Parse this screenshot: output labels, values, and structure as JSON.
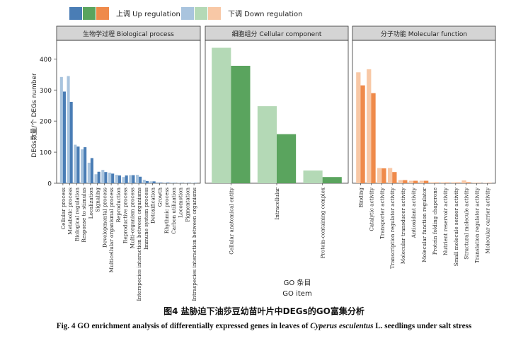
{
  "legend": {
    "up_label": "上调  Up regulation",
    "down_label": "下调  Down regulation"
  },
  "axes": {
    "ylabel": "DEGs数量/个  DEGs number",
    "xlabel_cn": "GO  条目",
    "xlabel_en": "GO item"
  },
  "caption": {
    "cn": "图4    盐胁迫下油莎豆幼苗叶片中DEGs的GO富集分析",
    "en_prefix": "Fig. 4    GO enrichment analysis of differentially expressed genes in leaves of ",
    "en_italic": "Cyperus esculentus",
    "en_suffix": " L. seedlings under salt stress"
  },
  "colors": {
    "bp_up": "#4a7db5",
    "bp_down": "#a9c4de",
    "cc_up": "#5aa45e",
    "cc_down": "#b4d9b6",
    "mf_up": "#ef8a4a",
    "mf_down": "#f8c8a6",
    "strip": "#d4d4d4"
  },
  "chart_data": {
    "type": "bar",
    "ylim": [
      0,
      460
    ],
    "yticks": [
      0,
      100,
      200,
      300,
      400
    ],
    "series": [
      {
        "name": "上调  Up regulation"
      },
      {
        "name": "下调  Down regulation"
      }
    ],
    "facets": [
      {
        "title": "生物学过程  Biological process",
        "categories": [
          "Cellular process",
          "Metabolic process",
          "Biological regulation",
          "Response to stimulus",
          "Localization",
          "Signaling",
          "Developmental process",
          "Multicellular organismal process",
          "Reproduction",
          "Reproductive process",
          "Multi-organism process",
          "Interspecies interaction between organisms",
          "Immune system process",
          "Detoxification",
          "Growth",
          "Rhythmic process",
          "Carbon utilization",
          "Locomotion",
          "Pigmentation",
          "Intraspecies interaction between organisms"
        ],
        "up": [
          295,
          262,
          118,
          116,
          81,
          37,
          36,
          31,
          25,
          25,
          26,
          21,
          7,
          6,
          2,
          2,
          1,
          1,
          1,
          1
        ],
        "down": [
          342,
          345,
          124,
          109,
          66,
          29,
          43,
          34,
          27,
          20,
          26,
          27,
          11,
          6,
          3,
          2,
          2,
          1,
          1,
          1
        ]
      },
      {
        "title": "细胞组分  Cellular component",
        "categories": [
          "Cellular anatomical entity",
          "Intracellular",
          "Protein-containing complex"
        ],
        "up": [
          378,
          158,
          20
        ],
        "down": [
          436,
          248,
          41
        ]
      },
      {
        "title": "分子功能  Molecular function",
        "categories": [
          "Binding",
          "Catalytic activity",
          "Transporter activity",
          "Transcription regulator activity",
          "Molecular transducer activity",
          "Antioxidant activity",
          "Molecular function regulator",
          "Protein folding chaperone",
          "Nutrient reservoir activity",
          "Small molecule sensor activity",
          "Structural molecule activity",
          "Translation regulator activity",
          "Molecular carrier activity"
        ],
        "up": [
          315,
          290,
          48,
          36,
          10,
          8,
          8,
          2,
          2,
          2,
          3,
          1,
          1
        ],
        "down": [
          357,
          367,
          49,
          49,
          10,
          8,
          8,
          3,
          3,
          3,
          9,
          2,
          1
        ]
      }
    ]
  }
}
